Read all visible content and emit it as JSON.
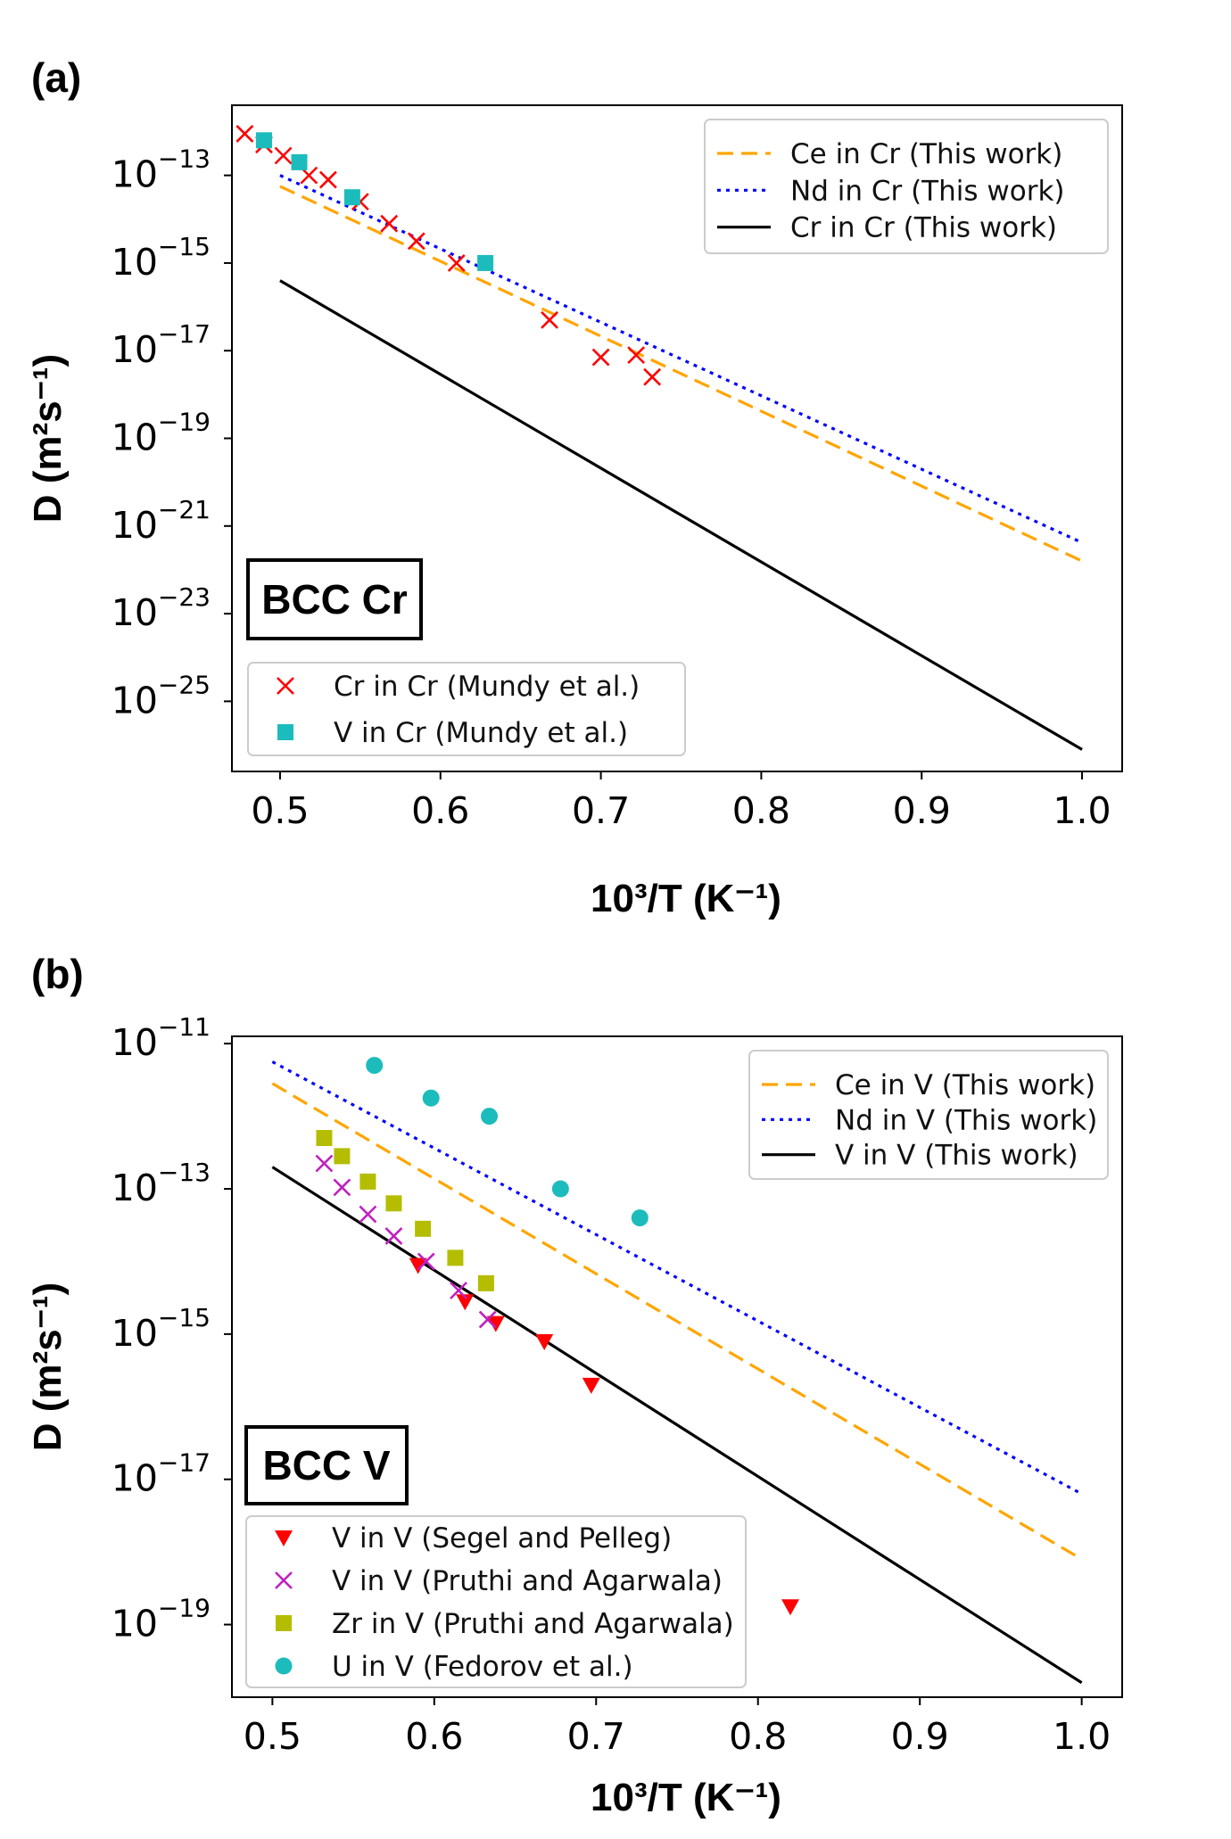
{
  "chart_data": [
    {
      "type": "line",
      "panel": "(a)",
      "box_label": "BCC Cr",
      "xlabel": "10³/T (K⁻¹)",
      "ylabel": "D (m²s⁻¹)",
      "xlim": [
        0.47,
        1.025
      ],
      "ylim_log10": [
        -26.6,
        -11.4
      ],
      "yscale": "log",
      "x_ticks": [
        0.5,
        0.6,
        0.7,
        0.8,
        0.9,
        1.0
      ],
      "x_tick_labels": [
        "0.5",
        "0.6",
        "0.7",
        "0.8",
        "0.9",
        "1.0"
      ],
      "y_ticks_log10": [
        -13,
        -15,
        -17,
        -19,
        -21,
        -23,
        -25
      ],
      "lines": [
        {
          "name": "Ce in Cr (This work)",
          "color": "#ffa500",
          "style": "dashed",
          "x": [
            0.5,
            1.0
          ],
          "log10_y": [
            -13.25,
            -21.8
          ]
        },
        {
          "name": "Nd in Cr (This work)",
          "color": "#0000ff",
          "style": "dotted",
          "x": [
            0.5,
            1.0
          ],
          "log10_y": [
            -13.0,
            -21.38
          ]
        },
        {
          "name": "Cr in Cr (This work)",
          "color": "#000000",
          "style": "solid",
          "x": [
            0.5,
            1.0
          ],
          "log10_y": [
            -15.4,
            -26.1
          ]
        }
      ],
      "scatter": [
        {
          "name": "Cr in Cr (Mundy et al.)",
          "color": "#ff0000",
          "marker": "x",
          "x": [
            0.478,
            0.49,
            0.502,
            0.518,
            0.53,
            0.55,
            0.568,
            0.585,
            0.61,
            0.668,
            0.7,
            0.722,
            0.732
          ],
          "log10_y": [
            -12.05,
            -12.3,
            -12.55,
            -13.0,
            -13.1,
            -13.6,
            -14.1,
            -14.5,
            -15.0,
            -16.3,
            -17.15,
            -17.1,
            -17.6
          ]
        },
        {
          "name": "V in Cr (Mundy et al.)",
          "color": "#1cbcbc",
          "marker": "square",
          "x": [
            0.49,
            0.512,
            0.545,
            0.628
          ],
          "log10_y": [
            -12.2,
            -12.7,
            -13.5,
            -15.0
          ]
        }
      ],
      "legend_upper": "top-right",
      "legend_lower": "bottom-left"
    },
    {
      "type": "line",
      "panel": "(b)",
      "box_label": "BCC V",
      "xlabel": "10³/T (K⁻¹)",
      "ylabel": "D (m²s⁻¹)",
      "xlim": [
        0.475,
        1.025
      ],
      "ylim_log10": [
        -20.0,
        -10.9
      ],
      "yscale": "log",
      "x_ticks": [
        0.5,
        0.6,
        0.7,
        0.8,
        0.9,
        1.0
      ],
      "x_tick_labels": [
        "0.5",
        "0.6",
        "0.7",
        "0.8",
        "0.9",
        "1.0"
      ],
      "y_ticks_log10": [
        -11,
        -13,
        -15,
        -17,
        -19
      ],
      "lines": [
        {
          "name": "Ce in V (This work)",
          "color": "#ffa500",
          "style": "dashed",
          "x": [
            0.5,
            1.0
          ],
          "log10_y": [
            -11.55,
            -18.1
          ]
        },
        {
          "name": "Nd in V (This work)",
          "color": "#0000ff",
          "style": "dotted",
          "x": [
            0.5,
            1.0
          ],
          "log10_y": [
            -11.25,
            -17.2
          ]
        },
        {
          "name": "V in V (This work)",
          "color": "#000000",
          "style": "solid",
          "x": [
            0.5,
            1.0
          ],
          "log10_y": [
            -12.7,
            -19.8
          ]
        }
      ],
      "scatter": [
        {
          "name": "V in V (Segel and Pelleg)",
          "color": "#ff0000",
          "marker": "triangle-down",
          "x": [
            0.59,
            0.619,
            0.638,
            0.668,
            0.697,
            0.82
          ],
          "log10_y": [
            -14.05,
            -14.55,
            -14.85,
            -15.1,
            -15.7,
            -18.75
          ]
        },
        {
          "name": "V in V (Pruthi and Agarwala)",
          "color": "#c020c0",
          "marker": "x",
          "x": [
            0.532,
            0.543,
            0.559,
            0.575,
            0.595,
            0.615,
            0.633
          ],
          "log10_y": [
            -12.65,
            -12.98,
            -13.35,
            -13.65,
            -14.0,
            -14.4,
            -14.8
          ]
        },
        {
          "name": "Zr in V (Pruthi and Agarwala)",
          "color": "#b5bd00",
          "marker": "square",
          "x": [
            0.532,
            0.543,
            0.559,
            0.575,
            0.593,
            0.613,
            0.632
          ],
          "log10_y": [
            -12.3,
            -12.55,
            -12.9,
            -13.2,
            -13.55,
            -13.95,
            -14.3
          ]
        },
        {
          "name": "U in V (Fedorov et al.)",
          "color": "#1cbcbc",
          "marker": "circle",
          "x": [
            0.563,
            0.598,
            0.634,
            0.678,
            0.727
          ],
          "log10_y": [
            -11.3,
            -11.75,
            -12.0,
            -13.0,
            -13.4
          ]
        }
      ],
      "legend_upper": "top-right",
      "legend_lower": "bottom-left"
    }
  ]
}
